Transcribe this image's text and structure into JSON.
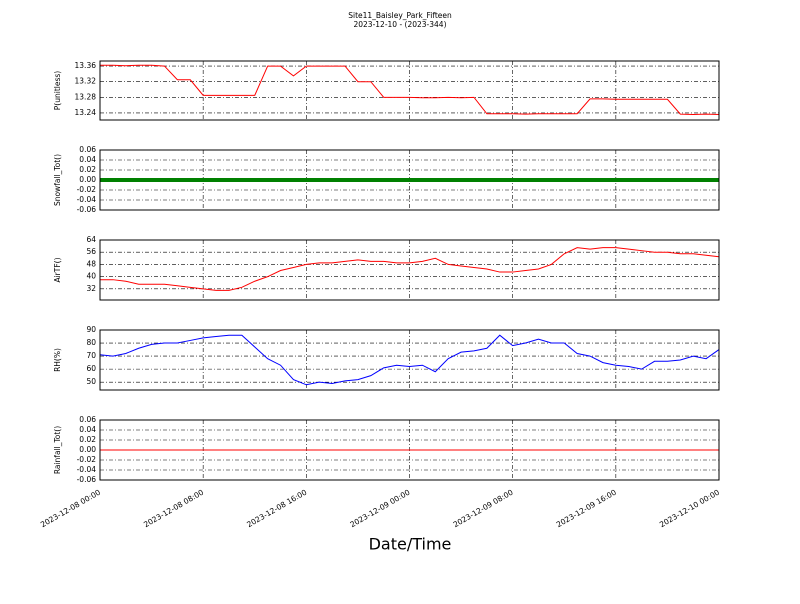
{
  "chart_data": [
    {
      "type": "line",
      "title": "Site11_Baisley_Park_Fifteen",
      "subtitle": "2023-12-10 - (2023-344)",
      "ylabel": "P(unitless)",
      "color": "#ff0000",
      "x": [
        "2023-12-08 00:00",
        "2023-12-08 01:00",
        "2023-12-08 02:00",
        "2023-12-08 03:00",
        "2023-12-08 04:00",
        "2023-12-08 05:00",
        "2023-12-08 06:00",
        "2023-12-08 07:00",
        "2023-12-08 08:00",
        "2023-12-08 09:00",
        "2023-12-08 10:00",
        "2023-12-08 11:00",
        "2023-12-08 12:00",
        "2023-12-08 13:00",
        "2023-12-08 14:00",
        "2023-12-08 15:00",
        "2023-12-08 16:00",
        "2023-12-08 17:00",
        "2023-12-08 18:00",
        "2023-12-08 19:00",
        "2023-12-08 20:00",
        "2023-12-08 21:00",
        "2023-12-08 22:00",
        "2023-12-08 23:00",
        "2023-12-09 00:00",
        "2023-12-09 01:00",
        "2023-12-09 02:00",
        "2023-12-09 03:00",
        "2023-12-09 04:00",
        "2023-12-09 05:00",
        "2023-12-09 06:00",
        "2023-12-09 07:00",
        "2023-12-09 08:00",
        "2023-12-09 09:00",
        "2023-12-09 10:00",
        "2023-12-09 11:00",
        "2023-12-09 12:00",
        "2023-12-09 13:00",
        "2023-12-09 14:00",
        "2023-12-09 15:00",
        "2023-12-09 16:00",
        "2023-12-09 17:00",
        "2023-12-09 18:00",
        "2023-12-09 19:00",
        "2023-12-09 20:00",
        "2023-12-09 21:00",
        "2023-12-09 22:00",
        "2023-12-09 23:00",
        "2023-12-10 00:00"
      ],
      "values": [
        13.362,
        13.362,
        13.361,
        13.362,
        13.362,
        13.36,
        13.325,
        13.325,
        13.285,
        13.285,
        13.285,
        13.285,
        13.285,
        13.36,
        13.36,
        13.335,
        13.36,
        13.36,
        13.36,
        13.36,
        13.32,
        13.32,
        13.28,
        13.28,
        13.28,
        13.279,
        13.279,
        13.28,
        13.279,
        13.28,
        13.238,
        13.238,
        13.238,
        13.237,
        13.238,
        13.238,
        13.238,
        13.238,
        13.276,
        13.276,
        13.275,
        13.275,
        13.275,
        13.275,
        13.275,
        13.237,
        13.236,
        13.237,
        13.236
      ],
      "xlim": [
        "2023-12-08 00:00",
        "2023-12-10 00:00"
      ],
      "xticks": [
        "2023-12-08 00:00",
        "2023-12-08 08:00",
        "2023-12-08 16:00",
        "2023-12-09 00:00",
        "2023-12-09 08:00",
        "2023-12-09 16:00",
        "2023-12-10 00:00"
      ],
      "ylim": [
        13.222,
        13.373
      ],
      "yticks": [
        13.24,
        13.28,
        13.32,
        13.36
      ],
      "grid": true
    },
    {
      "type": "line",
      "ylabel": "Snowfall_Tot()",
      "color": "#008000",
      "x": [
        "2023-12-08 00:00",
        "2023-12-08 01:00",
        "2023-12-08 02:00",
        "2023-12-08 03:00",
        "2023-12-08 04:00",
        "2023-12-08 05:00",
        "2023-12-08 06:00",
        "2023-12-08 07:00",
        "2023-12-08 08:00",
        "2023-12-08 09:00",
        "2023-12-08 10:00",
        "2023-12-08 11:00",
        "2023-12-08 12:00",
        "2023-12-08 13:00",
        "2023-12-08 14:00",
        "2023-12-08 15:00",
        "2023-12-08 16:00",
        "2023-12-08 17:00",
        "2023-12-08 18:00",
        "2023-12-08 19:00",
        "2023-12-08 20:00",
        "2023-12-08 21:00",
        "2023-12-08 22:00",
        "2023-12-08 23:00",
        "2023-12-09 00:00",
        "2023-12-09 01:00",
        "2023-12-09 02:00",
        "2023-12-09 03:00",
        "2023-12-09 04:00",
        "2023-12-09 05:00",
        "2023-12-09 06:00",
        "2023-12-09 07:00",
        "2023-12-09 08:00",
        "2023-12-09 09:00",
        "2023-12-09 10:00",
        "2023-12-09 11:00",
        "2023-12-09 12:00",
        "2023-12-09 13:00",
        "2023-12-09 14:00",
        "2023-12-09 15:00",
        "2023-12-09 16:00",
        "2023-12-09 17:00",
        "2023-12-09 18:00",
        "2023-12-09 19:00",
        "2023-12-09 20:00",
        "2023-12-09 21:00",
        "2023-12-09 22:00",
        "2023-12-09 23:00",
        "2023-12-10 00:00"
      ],
      "values": [
        0,
        0,
        0,
        0,
        0,
        0,
        0,
        0,
        0,
        0,
        0,
        0,
        0,
        0,
        0,
        0,
        0,
        0,
        0,
        0,
        0,
        0,
        0,
        0,
        0,
        0,
        0,
        0,
        0,
        0,
        0,
        0,
        0,
        0,
        0,
        0,
        0,
        0,
        0,
        0,
        0,
        0,
        0,
        0,
        0,
        0,
        0,
        0,
        0
      ],
      "xlim": [
        "2023-12-08 00:00",
        "2023-12-10 00:00"
      ],
      "xticks": [
        "2023-12-08 00:00",
        "2023-12-08 08:00",
        "2023-12-08 16:00",
        "2023-12-09 00:00",
        "2023-12-09 08:00",
        "2023-12-09 16:00",
        "2023-12-10 00:00"
      ],
      "ylim": [
        -0.06,
        0.06
      ],
      "yticks": [
        -0.06,
        -0.04,
        -0.02,
        {
          "value": 0,
          "label": "0.00"
        },
        0.02,
        0.04,
        0.06
      ],
      "grid": true
    },
    {
      "type": "line",
      "ylabel": "AirTF()",
      "color": "#ff0000",
      "x": [
        "2023-12-08 00:00",
        "2023-12-08 01:00",
        "2023-12-08 02:00",
        "2023-12-08 03:00",
        "2023-12-08 04:00",
        "2023-12-08 05:00",
        "2023-12-08 06:00",
        "2023-12-08 07:00",
        "2023-12-08 08:00",
        "2023-12-08 09:00",
        "2023-12-08 10:00",
        "2023-12-08 11:00",
        "2023-12-08 12:00",
        "2023-12-08 13:00",
        "2023-12-08 14:00",
        "2023-12-08 15:00",
        "2023-12-08 16:00",
        "2023-12-08 17:00",
        "2023-12-08 18:00",
        "2023-12-08 19:00",
        "2023-12-08 20:00",
        "2023-12-08 21:00",
        "2023-12-08 22:00",
        "2023-12-08 23:00",
        "2023-12-09 00:00",
        "2023-12-09 01:00",
        "2023-12-09 02:00",
        "2023-12-09 03:00",
        "2023-12-09 04:00",
        "2023-12-09 05:00",
        "2023-12-09 06:00",
        "2023-12-09 07:00",
        "2023-12-09 08:00",
        "2023-12-09 09:00",
        "2023-12-09 10:00",
        "2023-12-09 11:00",
        "2023-12-09 12:00",
        "2023-12-09 13:00",
        "2023-12-09 14:00",
        "2023-12-09 15:00",
        "2023-12-09 16:00",
        "2023-12-09 17:00",
        "2023-12-09 18:00",
        "2023-12-09 19:00",
        "2023-12-09 20:00",
        "2023-12-09 21:00",
        "2023-12-09 22:00",
        "2023-12-09 23:00",
        "2023-12-10 00:00"
      ],
      "values": [
        38,
        38,
        37,
        35,
        35,
        35,
        34,
        33,
        32,
        31,
        31,
        33,
        37,
        40,
        44,
        46,
        48,
        49,
        49,
        50,
        51,
        50,
        50,
        49,
        49,
        50,
        52,
        48,
        47,
        46,
        45,
        43,
        43,
        44,
        45,
        48,
        55,
        59,
        58,
        59,
        59,
        58,
        57,
        56,
        56,
        55,
        55,
        54,
        53
      ],
      "xlim": [
        "2023-12-08 00:00",
        "2023-12-10 00:00"
      ],
      "xticks": [
        "2023-12-08 00:00",
        "2023-12-08 08:00",
        "2023-12-08 16:00",
        "2023-12-09 00:00",
        "2023-12-09 08:00",
        "2023-12-09 16:00",
        "2023-12-10 00:00"
      ],
      "ylim": [
        24.7,
        64
      ],
      "yticks": [
        32,
        40,
        48,
        56,
        64
      ],
      "grid": true
    },
    {
      "type": "line",
      "ylabel": "RH(%)",
      "color": "#0000ff",
      "x": [
        "2023-12-08 00:00",
        "2023-12-08 01:00",
        "2023-12-08 02:00",
        "2023-12-08 03:00",
        "2023-12-08 04:00",
        "2023-12-08 05:00",
        "2023-12-08 06:00",
        "2023-12-08 07:00",
        "2023-12-08 08:00",
        "2023-12-08 09:00",
        "2023-12-08 10:00",
        "2023-12-08 11:00",
        "2023-12-08 12:00",
        "2023-12-08 13:00",
        "2023-12-08 14:00",
        "2023-12-08 15:00",
        "2023-12-08 16:00",
        "2023-12-08 17:00",
        "2023-12-08 18:00",
        "2023-12-08 19:00",
        "2023-12-08 20:00",
        "2023-12-08 21:00",
        "2023-12-08 22:00",
        "2023-12-08 23:00",
        "2023-12-09 00:00",
        "2023-12-09 01:00",
        "2023-12-09 02:00",
        "2023-12-09 03:00",
        "2023-12-09 04:00",
        "2023-12-09 05:00",
        "2023-12-09 06:00",
        "2023-12-09 07:00",
        "2023-12-09 08:00",
        "2023-12-09 09:00",
        "2023-12-09 10:00",
        "2023-12-09 11:00",
        "2023-12-09 12:00",
        "2023-12-09 13:00",
        "2023-12-09 14:00",
        "2023-12-09 15:00",
        "2023-12-09 16:00",
        "2023-12-09 17:00",
        "2023-12-09 18:00",
        "2023-12-09 19:00",
        "2023-12-09 20:00",
        "2023-12-09 21:00",
        "2023-12-09 22:00",
        "2023-12-09 23:00",
        "2023-12-10 00:00"
      ],
      "values": [
        71,
        70,
        72,
        76,
        79,
        80,
        80,
        82,
        84,
        85,
        86,
        86,
        77,
        68,
        63,
        52,
        48,
        50,
        49,
        51,
        52,
        55,
        61,
        63,
        62,
        63,
        58,
        68,
        73,
        74,
        76,
        86,
        78,
        80,
        83,
        80,
        80,
        72,
        70,
        65,
        63,
        62,
        60,
        66,
        66,
        67,
        70,
        68,
        75
      ],
      "xlim": [
        "2023-12-08 00:00",
        "2023-12-10 00:00"
      ],
      "xticks": [
        "2023-12-08 00:00",
        "2023-12-08 08:00",
        "2023-12-08 16:00",
        "2023-12-09 00:00",
        "2023-12-09 08:00",
        "2023-12-09 16:00",
        "2023-12-10 00:00"
      ],
      "ylim": [
        44,
        90
      ],
      "yticks": [
        50,
        60,
        70,
        80,
        90
      ],
      "grid": true
    },
    {
      "type": "line",
      "ylabel": "Rainfall_Tot()",
      "xlabel": "Date/Time",
      "color": "#ff0000",
      "x": [
        "2023-12-08 00:00",
        "2023-12-08 01:00",
        "2023-12-08 02:00",
        "2023-12-08 03:00",
        "2023-12-08 04:00",
        "2023-12-08 05:00",
        "2023-12-08 06:00",
        "2023-12-08 07:00",
        "2023-12-08 08:00",
        "2023-12-08 09:00",
        "2023-12-08 10:00",
        "2023-12-08 11:00",
        "2023-12-08 12:00",
        "2023-12-08 13:00",
        "2023-12-08 14:00",
        "2023-12-08 15:00",
        "2023-12-08 16:00",
        "2023-12-08 17:00",
        "2023-12-08 18:00",
        "2023-12-08 19:00",
        "2023-12-08 20:00",
        "2023-12-08 21:00",
        "2023-12-08 22:00",
        "2023-12-08 23:00",
        "2023-12-09 00:00",
        "2023-12-09 01:00",
        "2023-12-09 02:00",
        "2023-12-09 03:00",
        "2023-12-09 04:00",
        "2023-12-09 05:00",
        "2023-12-09 06:00",
        "2023-12-09 07:00",
        "2023-12-09 08:00",
        "2023-12-09 09:00",
        "2023-12-09 10:00",
        "2023-12-09 11:00",
        "2023-12-09 12:00",
        "2023-12-09 13:00",
        "2023-12-09 14:00",
        "2023-12-09 15:00",
        "2023-12-09 16:00",
        "2023-12-09 17:00",
        "2023-12-09 18:00",
        "2023-12-09 19:00",
        "2023-12-09 20:00",
        "2023-12-09 21:00",
        "2023-12-09 22:00",
        "2023-12-09 23:00",
        "2023-12-10 00:00"
      ],
      "values": [
        0,
        0,
        0,
        0,
        0,
        0,
        0,
        0,
        0,
        0,
        0,
        0,
        0,
        0,
        0,
        0,
        0,
        0,
        0,
        0,
        0,
        0,
        0,
        0,
        0,
        0,
        0,
        0,
        0,
        0,
        0,
        0,
        0,
        0,
        0,
        0,
        0,
        0,
        0,
        0,
        0,
        0,
        0,
        0,
        0,
        0,
        0,
        0,
        0
      ],
      "xlim": [
        "2023-12-08 00:00",
        "2023-12-10 00:00"
      ],
      "xticks": [
        "2023-12-08 00:00",
        "2023-12-08 08:00",
        "2023-12-08 16:00",
        "2023-12-09 00:00",
        "2023-12-09 08:00",
        "2023-12-09 16:00",
        "2023-12-10 00:00"
      ],
      "ylim": [
        -0.06,
        0.06
      ],
      "yticks": [
        -0.06,
        -0.04,
        -0.02,
        {
          "value": 0,
          "label": "0.00"
        },
        0.02,
        0.04,
        0.06
      ],
      "grid": true
    }
  ]
}
